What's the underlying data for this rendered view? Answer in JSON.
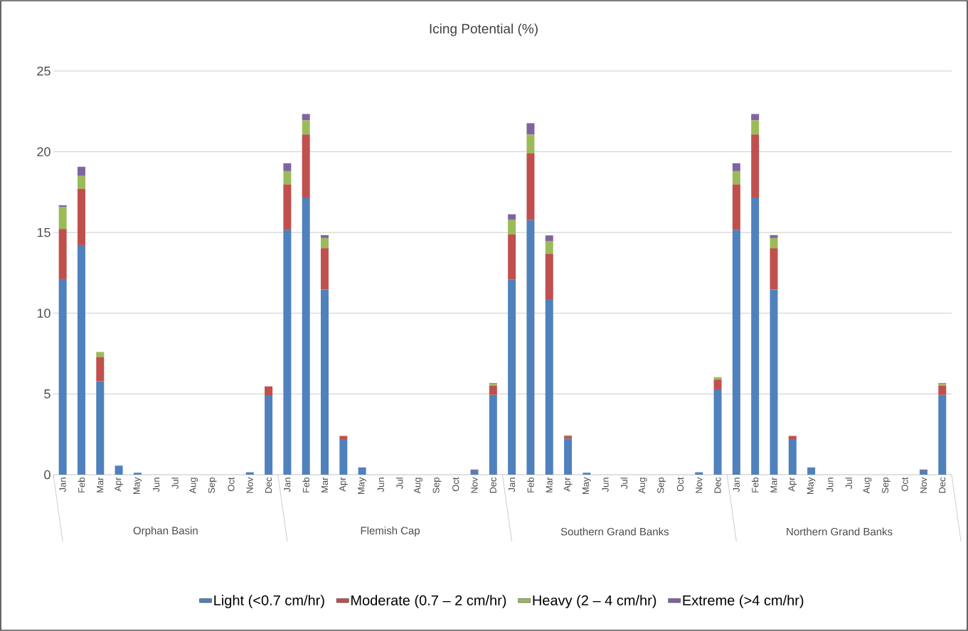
{
  "chart_data": {
    "type": "bar",
    "title": "Icing Potential (%)",
    "stacked": true,
    "categories": [
      "Jan",
      "Feb",
      "Mar",
      "Apr",
      "May",
      "Jun",
      "Jul",
      "Aug",
      "Sep",
      "Oct",
      "Nov",
      "Dec",
      "Jan",
      "Feb",
      "Mar",
      "Apr",
      "May",
      "Jun",
      "Jul",
      "Aug",
      "Sep",
      "Oct",
      "Nov",
      "Dec",
      "Jan",
      "Feb",
      "Mar",
      "Apr",
      "May",
      "Jun",
      "Jul",
      "Aug",
      "Sep",
      "Oct",
      "Nov",
      "Dec",
      "Jan",
      "Feb",
      "Mar",
      "Apr",
      "May",
      "Jun",
      "Jul",
      "Aug",
      "Sep",
      "Oct",
      "Nov",
      "Dec"
    ],
    "annotations": [
      "Orphan Basin",
      "Flemish Cap",
      "Southern Grand Banks",
      "Northern Grand Banks"
    ],
    "series": [
      {
        "name": "Light (<0.7 cm/hr)",
        "color": "#4f81bd",
        "values": [
          12.11,
          14.22,
          5.78,
          0.56,
          0.12,
          0,
          0,
          0,
          0,
          0,
          0.15,
          4.93,
          15.15,
          17.17,
          11.47,
          2.2,
          0.45,
          0,
          0,
          0,
          0,
          0,
          0.27,
          4.94,
          12.08,
          15.77,
          10.83,
          2.23,
          0.12,
          0,
          0,
          0,
          0,
          0,
          0.15,
          5.28,
          15.15,
          17.17,
          11.47,
          2.2,
          0.45,
          0,
          0,
          0,
          0,
          0,
          0.27,
          4.94
        ]
      },
      {
        "name": "Moderate (0.7 – 2 cm/hr)",
        "color": "#c0504d",
        "values": [
          3.11,
          3.49,
          1.51,
          0,
          0,
          0,
          0,
          0,
          0,
          0,
          0,
          0.54,
          2.83,
          3.9,
          2.56,
          0.2,
          0,
          0,
          0,
          0,
          0,
          0,
          0.05,
          0.58,
          2.8,
          4.13,
          2.85,
          0.15,
          0,
          0,
          0,
          0,
          0,
          0,
          0,
          0.61,
          2.83,
          3.9,
          2.56,
          0.2,
          0,
          0,
          0,
          0,
          0,
          0,
          0.05,
          0.58
        ]
      },
      {
        "name": "Heavy (2 – 4 cm/hr)",
        "color": "#9bbb59",
        "values": [
          1.35,
          0.79,
          0.31,
          0,
          0,
          0,
          0,
          0,
          0,
          0,
          0,
          0,
          0.82,
          0.88,
          0.63,
          0,
          0,
          0,
          0,
          0,
          0,
          0,
          0,
          0.09,
          0.92,
          1.17,
          0.77,
          0.06,
          0,
          0,
          0,
          0,
          0,
          0,
          0,
          0.15,
          0.82,
          0.88,
          0.63,
          0,
          0,
          0,
          0,
          0,
          0,
          0,
          0,
          0.09
        ]
      },
      {
        "name": "Extreme (>4 cm/hr)",
        "color": "#8064a2",
        "values": [
          0.12,
          0.57,
          0,
          0,
          0,
          0,
          0,
          0,
          0,
          0,
          0,
          0,
          0.49,
          0.39,
          0.18,
          0,
          0,
          0,
          0,
          0,
          0,
          0,
          0,
          0.06,
          0.33,
          0.7,
          0.37,
          0,
          0,
          0,
          0,
          0,
          0,
          0,
          0,
          0,
          0.49,
          0.39,
          0.18,
          0,
          0,
          0,
          0,
          0,
          0,
          0,
          0,
          0.06
        ]
      }
    ],
    "ylim": [
      0,
      25
    ],
    "yticks": [
      0,
      5,
      10,
      15,
      20,
      25
    ],
    "grid": "y",
    "legend": "bottom"
  }
}
